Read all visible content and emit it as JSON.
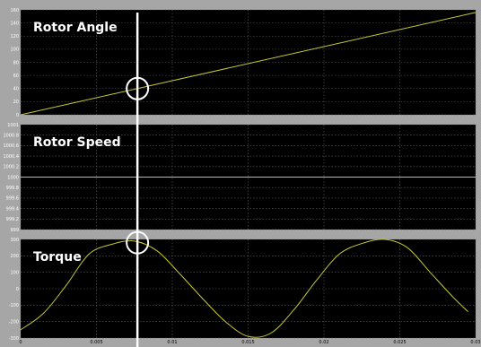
{
  "colors": {
    "background": "#a6a6a6",
    "axes_bg": "#000000",
    "grid": "#5c5c5c",
    "trace": "#c8c832",
    "cursor": "#ffffff",
    "tick_text": "#ffffff"
  },
  "chart_data": [
    {
      "type": "line",
      "title": "Rotor Angle",
      "xlabel": "",
      "ylabel": "",
      "xlim": [
        0,
        0.03
      ],
      "ylim": [
        0,
        160
      ],
      "x_ticks": [
        "0",
        "0.005",
        "0.01",
        "0.015",
        "0.02",
        "0.025",
        "0.03"
      ],
      "y_ticks": [
        "0",
        "20",
        "40",
        "60",
        "80",
        "100",
        "120",
        "140",
        "160"
      ],
      "grid": true,
      "series": [
        {
          "x": [
            0,
            0.03
          ],
          "y": [
            0,
            156
          ]
        }
      ]
    },
    {
      "type": "line",
      "title": "Rotor Speed",
      "xlabel": "",
      "ylabel": "",
      "xlim": [
        0,
        0.03
      ],
      "ylim": [
        999,
        1001
      ],
      "x_ticks": [
        "0",
        "0.005",
        "0.01",
        "0.015",
        "0.02",
        "0.025",
        "0.03"
      ],
      "y_ticks": [
        "999",
        "999.2",
        "999.4",
        "999.6",
        "999.8",
        "1000",
        "1000.2",
        "1000.4",
        "1000.6",
        "1000.8",
        "1001"
      ],
      "grid": true,
      "series": [
        {
          "x": [
            0,
            0.03
          ],
          "y": [
            1000,
            1000
          ]
        }
      ]
    },
    {
      "type": "line",
      "title": "Torque",
      "xlabel": "",
      "ylabel": "",
      "xlim": [
        0,
        0.03
      ],
      "ylim": [
        -300,
        300
      ],
      "x_ticks": [
        "0",
        "0.005",
        "0.01",
        "0.015",
        "0.02",
        "0.025",
        "0.03"
      ],
      "y_ticks": [
        "-300",
        "-200",
        "-100",
        "0",
        "100",
        "200",
        "300"
      ],
      "grid": true,
      "series": [
        {
          "x": [
            0,
            0.0015,
            0.003,
            0.0045,
            0.006,
            0.0075,
            0.009,
            0.0105,
            0.012,
            0.0135,
            0.015,
            0.0165,
            0.018,
            0.0195,
            0.021,
            0.0225,
            0.024,
            0.0255,
            0.027,
            0.0285,
            0.0295
          ],
          "y": [
            -250,
            -150,
            20,
            210,
            270,
            290,
            230,
            90,
            -60,
            -200,
            -290,
            -270,
            -130,
            50,
            210,
            275,
            300,
            250,
            100,
            -50,
            -140
          ]
        }
      ]
    }
  ],
  "cursor": {
    "x": 0.0077,
    "markers": [
      {
        "panel": 0,
        "y": 40
      },
      {
        "panel": 2,
        "y": 280
      }
    ]
  }
}
